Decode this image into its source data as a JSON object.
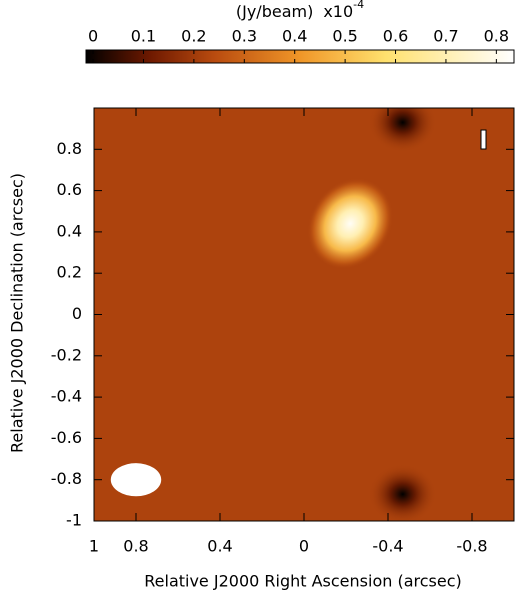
{
  "chart_data": {
    "type": "image",
    "colorbar": {
      "label": "(Jy/beam)",
      "scale": "x10",
      "exponent": "-4",
      "clim": [
        -0.014,
        0.835
      ],
      "ticks": [
        0,
        0.1,
        0.2,
        0.3,
        0.4,
        0.5,
        0.6,
        0.7,
        0.8
      ]
    },
    "xlabel": "Relative J2000 Right Ascension (arcsec)",
    "ylabel": "Relative J2000 Declination (arcsec)",
    "xlim": [
      1,
      -1
    ],
    "ylim": [
      -1,
      1
    ],
    "xticks": [
      1,
      0.8,
      0.4,
      0,
      -0.4,
      -0.8
    ],
    "yticks": [
      -1,
      -0.8,
      -0.6,
      -0.4,
      -0.2,
      0,
      0.2,
      0.4,
      0.6,
      0.8
    ],
    "background": 0.22,
    "sources": [
      {
        "x": -0.22,
        "y": 0.44,
        "peak": 0.82
      }
    ],
    "holes": [
      {
        "x": -0.47,
        "y": 0.93,
        "min": -0.014
      },
      {
        "x": -0.47,
        "y": -0.87,
        "min": -0.014
      }
    ],
    "beam": {
      "x": 0.8,
      "y": -0.8,
      "minor": 0.12,
      "major": 0.16
    }
  }
}
